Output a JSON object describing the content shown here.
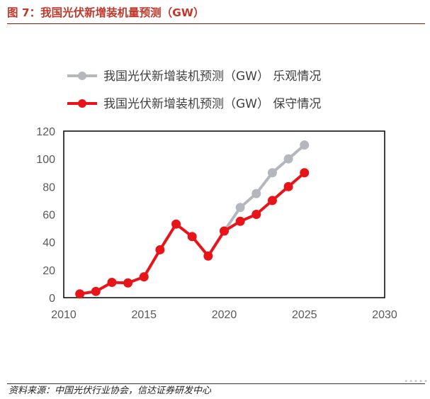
{
  "figure": {
    "title": "图 7：我国光伏新增装机量预测（GW）",
    "source": "资料来源：中国光伏行业协会，信达证券研发中心",
    "watermark": "▪ ▪ ▪ ▪ ▪"
  },
  "chart_data": {
    "type": "line",
    "x_range": [
      2010,
      2030
    ],
    "y_range": [
      0,
      120
    ],
    "x_ticks": [
      2010,
      2015,
      2020,
      2025,
      2030
    ],
    "y_ticks": [
      0,
      20,
      40,
      60,
      80,
      100,
      120
    ],
    "grid": false,
    "legend_position": "top",
    "series": [
      {
        "name": "我国光伏新增装机预测（GW）  乐观情况",
        "color": "#b4b7be",
        "x": [
          2020,
          2021,
          2022,
          2023,
          2024,
          2025
        ],
        "y": [
          48,
          65,
          75,
          90,
          100,
          110
        ]
      },
      {
        "name": "我国光伏新增装机预测（GW）  保守情况",
        "color": "#e8141a",
        "x": [
          2011,
          2012,
          2013,
          2014,
          2015,
          2016,
          2017,
          2018,
          2019,
          2020,
          2021,
          2022,
          2023,
          2024,
          2025
        ],
        "y": [
          2.7,
          4.5,
          11,
          10.6,
          15,
          34.5,
          53,
          44,
          30,
          48,
          55,
          60,
          70,
          80,
          90
        ]
      }
    ]
  }
}
